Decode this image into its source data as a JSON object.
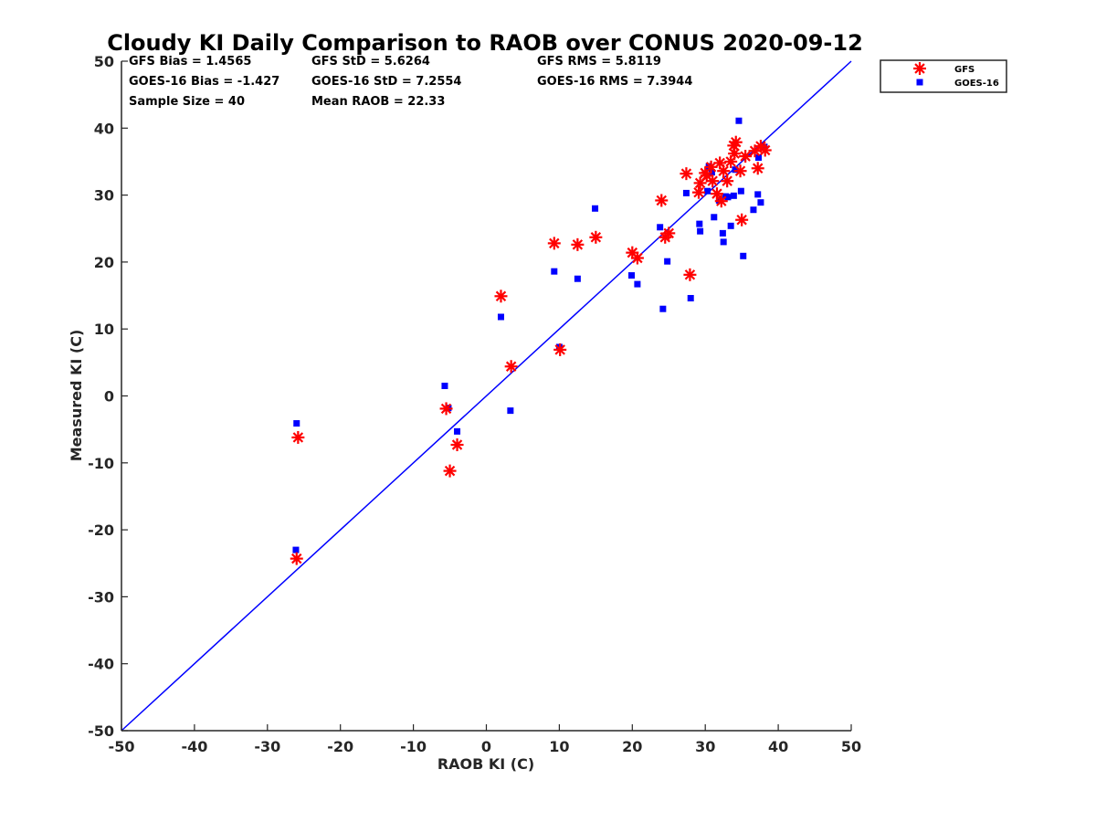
{
  "chart_data": {
    "type": "scatter",
    "title": "Cloudy KI Daily Comparison to RAOB over CONUS 2020-09-12",
    "xlabel": "RAOB KI (C)",
    "ylabel": "Measured KI (C)",
    "xlim": [
      -50,
      50
    ],
    "ylim": [
      -50,
      50
    ],
    "xticks": [
      "-50",
      "-40",
      "-30",
      "-20",
      "-10",
      "0",
      "10",
      "20",
      "30",
      "40",
      "50"
    ],
    "yticks": [
      "-50",
      "-40",
      "-30",
      "-20",
      "-10",
      "0",
      "10",
      "20",
      "30",
      "40",
      "50"
    ],
    "grid": false,
    "legend_position": "outside-top-right",
    "reference_line": {
      "x": [
        -50,
        50
      ],
      "y": [
        -50,
        50
      ],
      "color": "#0000ff"
    },
    "stats": [
      "GFS Bias = 1.4565",
      "GFS StD = 5.6264",
      "GFS RMS = 5.8119",
      "GOES-16 Bias = -1.427",
      "GOES-16 StD = 7.2554",
      "GOES-16 RMS = 7.3944",
      "Sample Size = 40",
      "Mean RAOB = 22.33"
    ],
    "series": [
      {
        "name": "GFS",
        "marker": "asterisk",
        "color": "#ff0000",
        "x": [
          -26,
          -25.8,
          -5.5,
          -5,
          -4,
          2,
          3.4,
          9.3,
          10.1,
          12.5,
          15,
          20,
          20.7,
          24,
          24.5,
          25,
          27.4,
          27.9,
          29.1,
          29.3,
          30,
          30.2,
          30.8,
          31,
          31.6,
          32,
          32.2,
          32.5,
          33,
          33.5,
          33.9,
          34,
          34.2,
          34.8,
          35,
          35.5,
          36.8,
          37.2,
          37.6,
          38.2
        ],
        "y": [
          -24.3,
          -6.2,
          -1.9,
          -11.2,
          -7.3,
          14.9,
          4.4,
          22.8,
          6.9,
          22.6,
          23.7,
          21.4,
          20.6,
          29.2,
          23.7,
          24.3,
          33.2,
          18.1,
          30.4,
          31.8,
          33.3,
          32.9,
          34.2,
          32.1,
          30.2,
          34.8,
          29.1,
          33.6,
          32.1,
          35,
          37.4,
          36.2,
          37.9,
          33.6,
          26.3,
          35.8,
          36.6,
          34,
          37.3,
          36.7
        ]
      },
      {
        "name": "GOES-16",
        "marker": "square",
        "color": "#0000ff",
        "x": [
          -26.1,
          -26,
          -5.7,
          -5.2,
          -4,
          2,
          3.3,
          9.3,
          10,
          12.5,
          14.9,
          19.9,
          20.7,
          23.8,
          24.2,
          24.8,
          27.4,
          28,
          29.2,
          29.3,
          30.3,
          30.5,
          30.9,
          31.2,
          31.9,
          32.4,
          32.5,
          32.8,
          33.1,
          33.5,
          33.9,
          34.1,
          34.6,
          34.9,
          35.2,
          36.6,
          37.2,
          37.3,
          37.6,
          38.1
        ],
        "y": [
          -23,
          -4.1,
          1.5,
          -1.8,
          -5.3,
          11.8,
          -2.2,
          18.6,
          7.3,
          17.5,
          28,
          18,
          16.7,
          25.2,
          13,
          20.1,
          30.3,
          14.6,
          25.7,
          24.6,
          30.6,
          34.3,
          33.4,
          26.7,
          29.2,
          24.3,
          23,
          29.8,
          29.7,
          25.4,
          29.9,
          33.8,
          41.1,
          30.6,
          20.9,
          27.8,
          30.1,
          35.6,
          28.9,
          37.2
        ]
      }
    ]
  }
}
